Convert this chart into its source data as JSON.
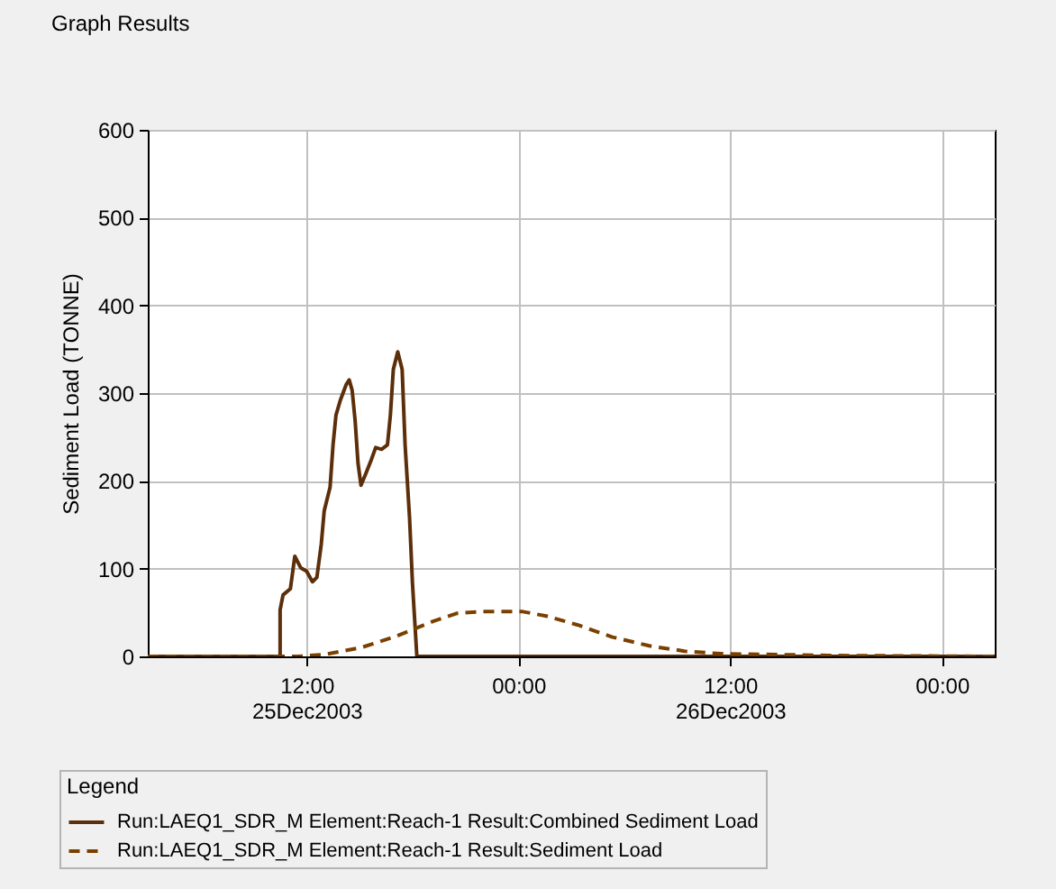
{
  "chart_data": {
    "type": "line",
    "title": "Graph Results",
    "ylabel": "Sediment Load (TONNE)",
    "xlim": [
      "2003-12-25T03:00",
      "2003-12-27T03:00"
    ],
    "xticks": [
      {
        "value": "2003-12-25T12:00",
        "label": "12:00\n25Dec2003"
      },
      {
        "value": "2003-12-26T00:00",
        "label": "00:00"
      },
      {
        "value": "2003-12-26T12:00",
        "label": "12:00\n26Dec2003"
      },
      {
        "value": "2003-12-27T00:00",
        "label": "00:00"
      }
    ],
    "ylim": [
      0,
      600
    ],
    "yticks": [
      0,
      100,
      200,
      300,
      400,
      500,
      600
    ],
    "grid": true,
    "legend": "bottom",
    "legend_title": "Legend",
    "marker": "none",
    "series": [
      {
        "name": "Run:LAEQ1_SDR_M Element:Reach-1 Result:Combined Sediment Load",
        "color": "#5c2e0a",
        "line_style": "solid",
        "x": [
          "2003-12-25T03:00",
          "2003-12-25T10:30",
          "2003-12-25T10:30",
          "2003-12-25T10:40",
          "2003-12-25T11:05",
          "2003-12-25T11:20",
          "2003-12-25T11:40",
          "2003-12-25T12:00",
          "2003-12-25T12:20",
          "2003-12-25T12:35",
          "2003-12-25T12:50",
          "2003-12-25T13:00",
          "2003-12-25T13:20",
          "2003-12-25T13:30",
          "2003-12-25T13:40",
          "2003-12-25T13:55",
          "2003-12-25T14:15",
          "2003-12-25T14:25",
          "2003-12-25T14:35",
          "2003-12-25T14:45",
          "2003-12-25T14:55",
          "2003-12-25T15:05",
          "2003-12-25T15:20",
          "2003-12-25T15:40",
          "2003-12-25T15:55",
          "2003-12-25T16:15",
          "2003-12-25T16:35",
          "2003-12-25T16:45",
          "2003-12-25T16:55",
          "2003-12-25T17:10",
          "2003-12-25T17:25",
          "2003-12-25T17:35",
          "2003-12-25T17:50",
          "2003-12-25T18:00",
          "2003-12-25T18:15",
          "2003-12-27T03:00"
        ],
        "values": [
          0,
          0,
          53,
          70,
          77,
          114,
          101,
          97,
          85,
          90,
          128,
          166,
          193,
          241,
          275,
          292,
          310,
          315,
          303,
          269,
          220,
          195,
          207,
          224,
          238,
          236,
          241,
          275,
          327,
          347,
          327,
          241,
          159,
          84,
          0,
          0
        ]
      },
      {
        "name": "Run:LAEQ1_SDR_M Element:Reach-1 Result:Sediment Load",
        "color": "#7b4000",
        "line_style": "dashed",
        "x": [
          "2003-12-25T03:00",
          "2003-12-25T11:30",
          "2003-12-25T13:00",
          "2003-12-25T14:00",
          "2003-12-25T15:05",
          "2003-12-25T17:05",
          "2003-12-25T19:10",
          "2003-12-25T20:30",
          "2003-12-25T21:55",
          "2003-12-26T00:15",
          "2003-12-26T01:35",
          "2003-12-26T03:20",
          "2003-12-26T05:20",
          "2003-12-26T07:25",
          "2003-12-26T09:25",
          "2003-12-26T11:30",
          "2003-12-26T14:50",
          "2003-12-26T17:35",
          "2003-12-27T03:00"
        ],
        "values": [
          0,
          0,
          2,
          6,
          10,
          23,
          40,
          49,
          51,
          51,
          46,
          36,
          22,
          12,
          6,
          3,
          2,
          1,
          0
        ]
      }
    ]
  }
}
